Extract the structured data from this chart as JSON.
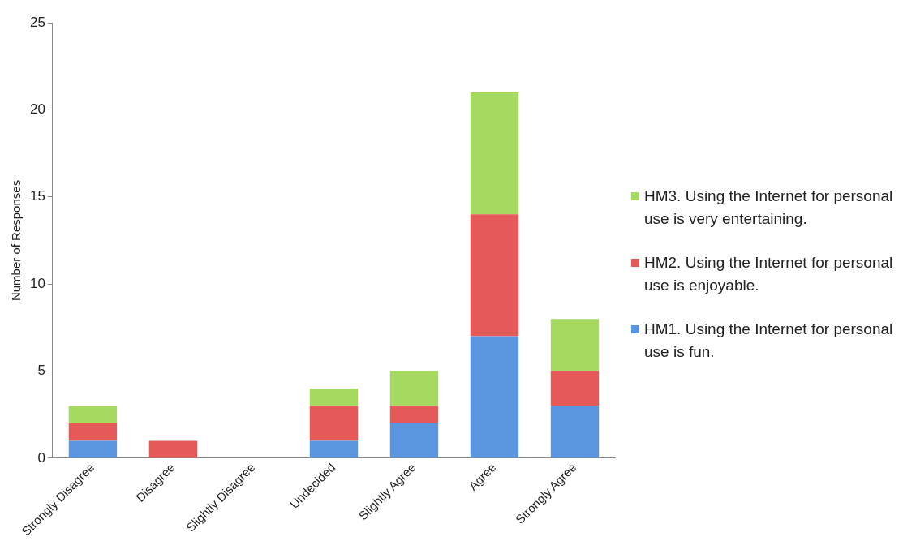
{
  "chart_data": {
    "type": "bar",
    "stacked": true,
    "ylabel": "Number of Responses",
    "categories": [
      "Strongly Disagree",
      "Disagree",
      "Slightly Disagree",
      "Undecided",
      "Slightly Agree",
      "Agree",
      "Strongly Agree"
    ],
    "series": [
      {
        "name": "HM1. Using the Internet for personal use is fun.",
        "color": "#5a96e0",
        "values": [
          1,
          0,
          0,
          1,
          2,
          7,
          3
        ]
      },
      {
        "name": "HM2. Using the Internet for personal use is enjoyable.",
        "color": "#e55a58",
        "values": [
          1,
          1,
          0,
          2,
          1,
          7,
          2
        ]
      },
      {
        "name": "HM3. Using the Internet for personal use is very entertaining.",
        "color": "#a6d960",
        "values": [
          1,
          0,
          0,
          1,
          2,
          7,
          3
        ]
      }
    ],
    "ylim": [
      0,
      25
    ],
    "yticks": [
      0,
      5,
      10,
      15,
      20,
      25
    ],
    "grid": false,
    "legend": "right"
  }
}
